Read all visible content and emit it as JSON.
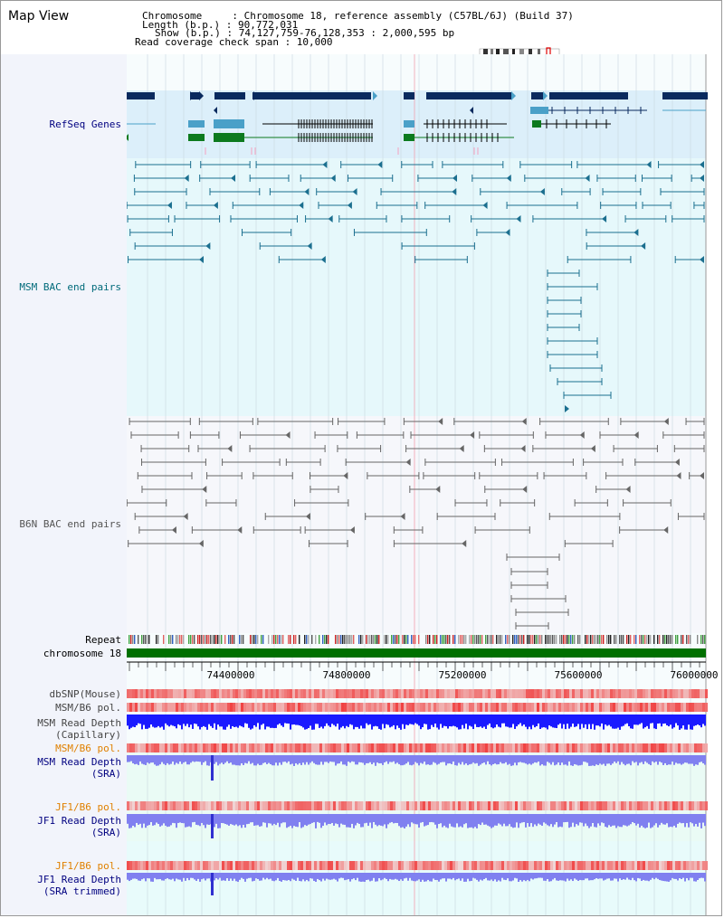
{
  "header": {
    "title": "Map View",
    "chromosome_line": "Chromosome     : Chromosome 18, reference assembly (C57BL/6J) (Build 37)",
    "length_line": "Length (b.p.) : 90,772,031",
    "show_line": "Show (b.p.) : 74,127,759-76,128,353 : 2,000,595 bp",
    "coverage_line": "Read coverage check span : 10,000"
  },
  "tracks": {
    "refseq": "RefSeq Genes",
    "msm_bac": "MSM BAC end pairs",
    "b6n_bac": "B6N BAC end pairs",
    "repeat": "Repeat",
    "chromosome": "chromosome 18",
    "dbsnp": "dbSNP(Mouse)",
    "msm_b6_pol_1": "MSM/B6 pol.",
    "msm_depth_cap_1": "MSM Read Depth",
    "msm_depth_cap_2": "(Capillary)",
    "msm_b6_pol_2": "MSM/B6 pol.",
    "msm_depth_sra_1": "MSM Read Depth",
    "msm_depth_sra_2": "(SRA)",
    "jf1_b6_pol_1": "JF1/B6 pol.",
    "jf1_depth_sra_1": "JF1 Read Depth",
    "jf1_depth_sra_2": "(SRA)",
    "jf1_b6_pol_2": "JF1/B6 pol.",
    "jf1_depth_trim_1": "JF1 Read Depth",
    "jf1_depth_trim_2": "(SRA trimmed)"
  },
  "axis": {
    "ticks": [
      "74400000",
      "74800000",
      "75200000",
      "75600000",
      "76000000"
    ]
  },
  "colors": {
    "refseq_bg": "#dceffa",
    "msm_bg": "#e6f8fb",
    "gene_navy": "#0a2a5e",
    "gene_blue": "#4aa0c8",
    "gene_green": "#0c7a1e",
    "msm_pair": "#1b6f8f",
    "b6n_pair": "#666666",
    "chromosome_bar": "#007000",
    "depth_blue": "#1a1aff",
    "depth_light": "#8080f0",
    "label_navy": "#000080",
    "label_teal": "#006a7a",
    "label_orange": "#e08000"
  }
}
